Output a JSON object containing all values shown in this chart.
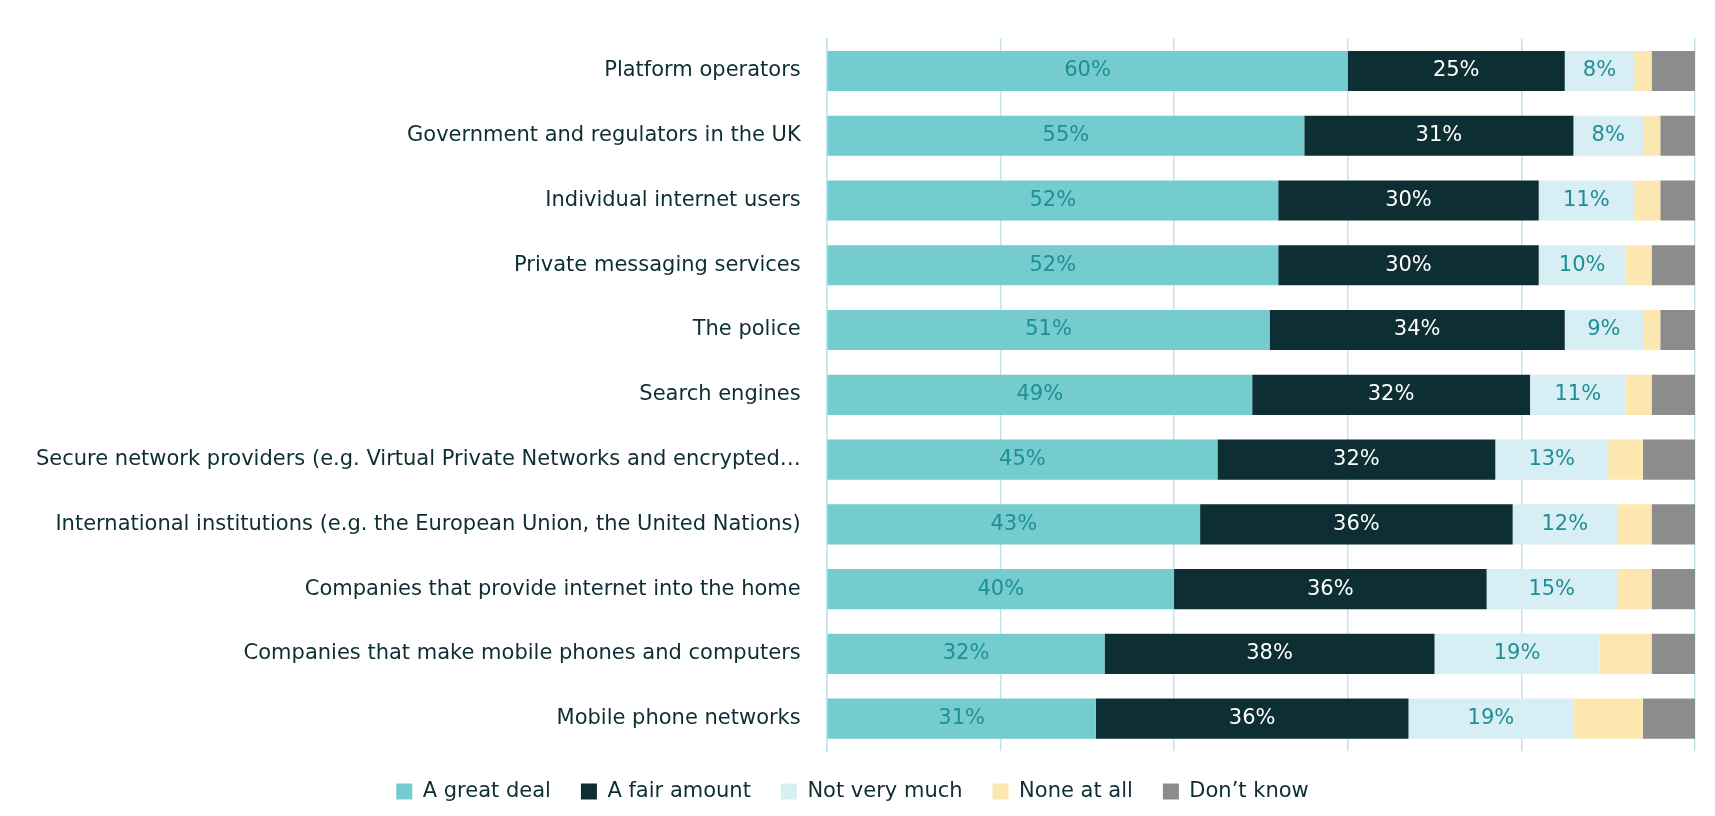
{
  "chart_data": {
    "type": "bar",
    "orientation": "horizontal",
    "stacked": true,
    "categories": [
      "Platform operators",
      "Government and regulators in the UK",
      "Individual internet users",
      "Private messaging services",
      "The police",
      "Search engines",
      "Secure network providers (e.g. Virtual Private Networks and encrypted…",
      "International institutions (e.g. the European Union, the United Nations)",
      "Companies that provide internet into the home",
      "Companies that make mobile phones and computers",
      "Mobile phone networks"
    ],
    "series": [
      {
        "name": "A great deal",
        "color": "#74cccf",
        "values": [
          60,
          55,
          52,
          52,
          51,
          49,
          45,
          43,
          40,
          32,
          31
        ],
        "value_labels": [
          "60%",
          "55%",
          "52%",
          "52%",
          "51%",
          "49%",
          "45%",
          "43%",
          "40%",
          "32%",
          "31%"
        ]
      },
      {
        "name": "A fair amount",
        "color": "#0d2e33",
        "values": [
          25,
          31,
          30,
          30,
          34,
          32,
          32,
          36,
          36,
          38,
          36
        ],
        "value_labels": [
          "25%",
          "31%",
          "30%",
          "30%",
          "34%",
          "32%",
          "32%",
          "36%",
          "36%",
          "38%",
          "36%"
        ]
      },
      {
        "name": "Not very much",
        "color": "#d6eef4",
        "values": [
          8,
          8,
          11,
          10,
          9,
          11,
          13,
          12,
          15,
          19,
          19
        ],
        "value_labels": [
          "8%",
          "8%",
          "11%",
          "10%",
          "9%",
          "11%",
          "13%",
          "12%",
          "15%",
          "19%",
          "19%"
        ]
      },
      {
        "name": "None at all",
        "color": "#fce7b0",
        "values": [
          2,
          2,
          3,
          3,
          2,
          3,
          4,
          4,
          4,
          6,
          8
        ]
      },
      {
        "name": "Don’t know",
        "color": "#8c8c8c",
        "values": [
          5,
          4,
          4,
          5,
          4,
          5,
          6,
          5,
          5,
          5,
          6
        ]
      }
    ],
    "xlim": [
      0,
      100
    ],
    "xticks": [
      {
        "value": 0,
        "label": null
      },
      {
        "value": 20,
        "label": null
      },
      {
        "value": 40,
        "label": null
      },
      {
        "value": 60,
        "label": null
      },
      {
        "value": 80,
        "label": null
      },
      {
        "value": 100,
        "label": null
      }
    ],
    "tick_labels": "y",
    "grid": "x",
    "legend": "bottom"
  }
}
